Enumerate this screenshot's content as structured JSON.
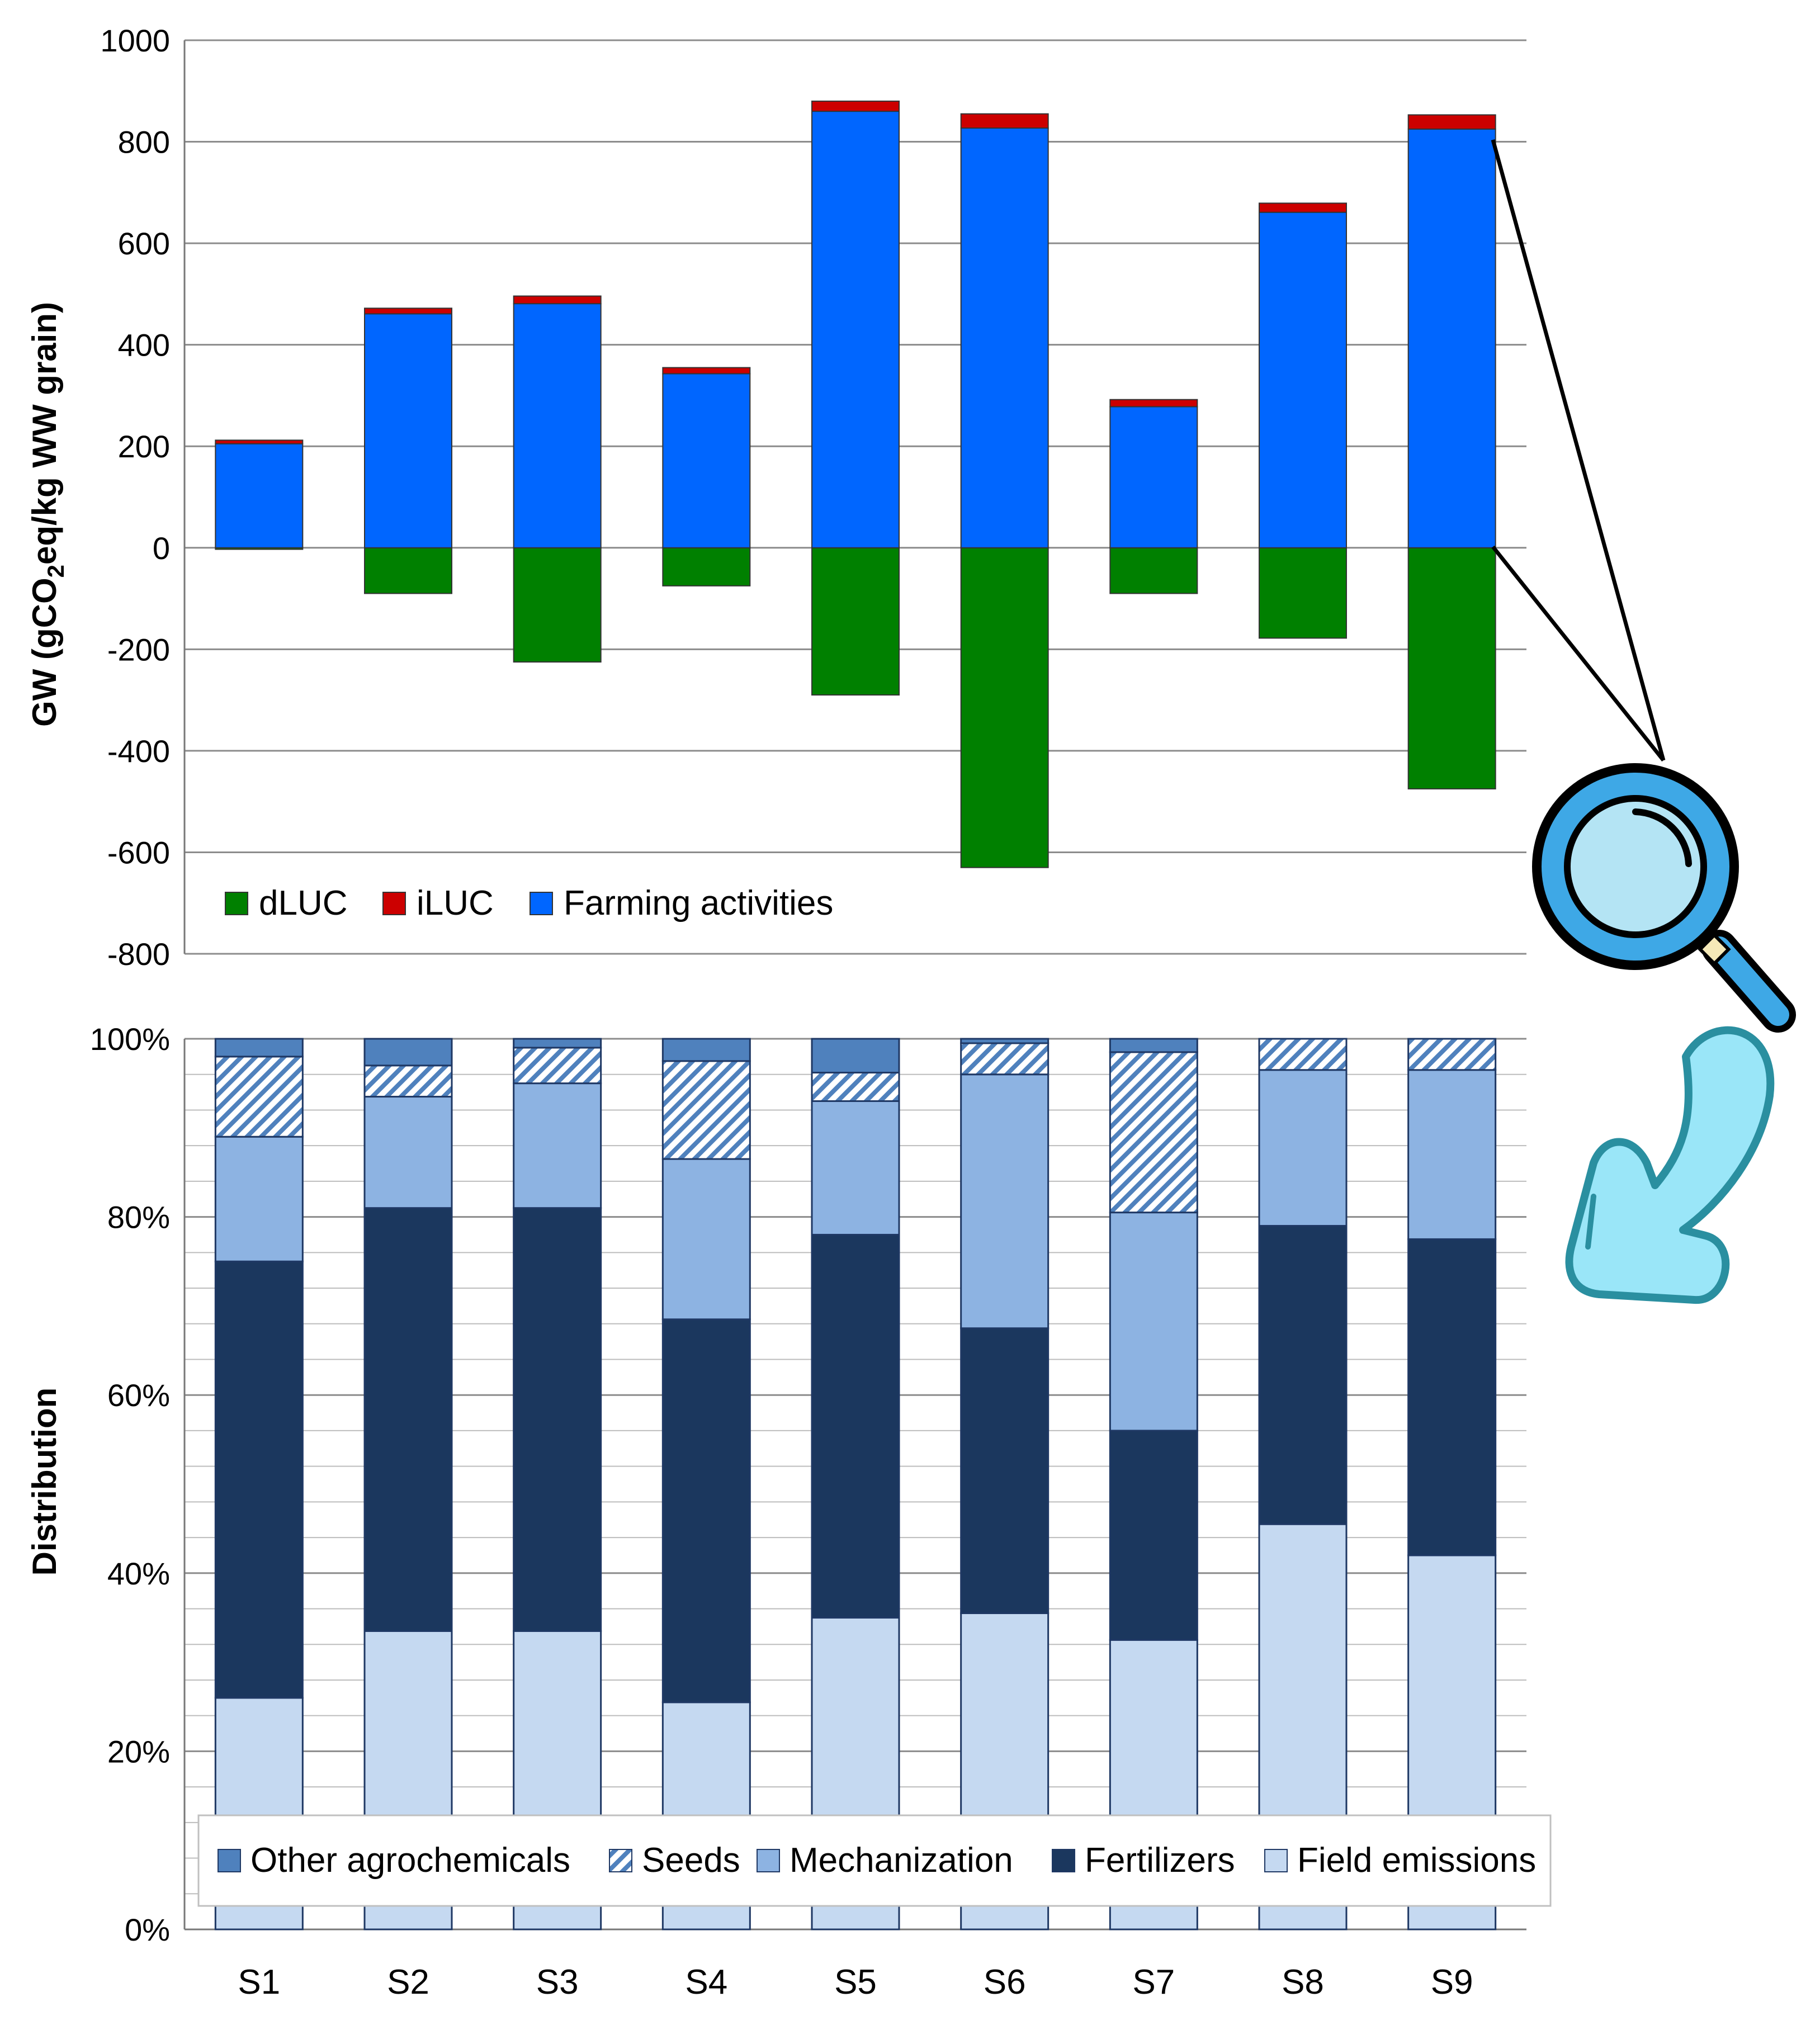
{
  "chart_data": [
    {
      "type": "bar",
      "stacked": true,
      "ylabel": "GW (gCO2eq/kg WW grain)",
      "ylabel_parts": {
        "main": "GW (gCO",
        "sub": "2",
        "rest": "eq/kg WW grain)"
      },
      "ylim": [
        -800,
        1000
      ],
      "yticks": [
        1000,
        800,
        600,
        400,
        200,
        0,
        -200,
        -400,
        -600,
        -800
      ],
      "categories": [
        "S1",
        "S2",
        "S3",
        "S4",
        "S5",
        "S6",
        "S7",
        "S8",
        "S9"
      ],
      "series": [
        {
          "name": "dLUC",
          "color": "#008000",
          "values": [
            -3,
            -90,
            -225,
            -75,
            -290,
            -630,
            -90,
            -178,
            -475
          ]
        },
        {
          "name": "iLUC",
          "color": "#cc0000",
          "values": [
            7,
            11,
            15,
            12,
            20,
            28,
            14,
            18,
            28
          ]
        },
        {
          "name": "Farming activities",
          "color": "#0066ff",
          "values": [
            205,
            461,
            481,
            343,
            860,
            827,
            278,
            661,
            825
          ]
        }
      ],
      "legend": [
        "dLUC",
        "iLUC",
        "Farming activities"
      ]
    },
    {
      "type": "bar",
      "stacked": true,
      "ylabel": "Distribution",
      "ylim": [
        0,
        100
      ],
      "yticks": [
        "100%",
        "80%",
        "60%",
        "40%",
        "20%",
        "0%"
      ],
      "categories": [
        "S1",
        "S2",
        "S3",
        "S4",
        "S5",
        "S6",
        "S7",
        "S8",
        "S9"
      ],
      "series": [
        {
          "name": "Field emissions",
          "color": "#c5d9f1",
          "values": [
            26,
            33.5,
            33.5,
            25.5,
            35,
            35.5,
            32.5,
            45.5,
            42
          ]
        },
        {
          "name": "Fertilizers",
          "color": "#1b375e",
          "values": [
            49,
            47.5,
            47.5,
            43,
            43,
            32,
            23.5,
            33.5,
            35.5
          ]
        },
        {
          "name": "Mechanization",
          "color": "#8db3e2",
          "values": [
            14,
            12.5,
            14,
            18,
            15,
            28.5,
            24.5,
            17.5,
            19
          ]
        },
        {
          "name": "Seeds",
          "color": "#4f81bd",
          "pattern": "hatched",
          "values": [
            9,
            3.5,
            4,
            11,
            3.2,
            3.5,
            18,
            3.5,
            3.5
          ]
        },
        {
          "name": "Other agrochemicals",
          "color": "#4f81bd",
          "values": [
            2,
            3,
            1,
            2.5,
            3.8,
            0.5,
            1.5,
            0,
            0
          ]
        }
      ],
      "legend": [
        "Other agrochemicals",
        "Seeds",
        "Mechanization",
        "Fertilizers",
        "Field emissions"
      ]
    }
  ]
}
